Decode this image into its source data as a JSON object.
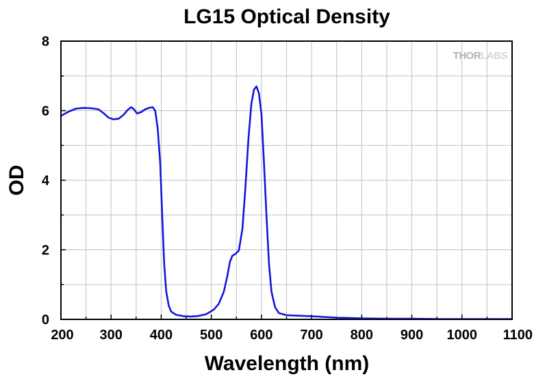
{
  "chart_data": {
    "type": "line",
    "title": "LG15 Optical Density",
    "xlabel": "Wavelength (nm)",
    "ylabel": "OD",
    "xlim": [
      200,
      1100
    ],
    "ylim": [
      0,
      8
    ],
    "xticks": [
      200,
      300,
      400,
      500,
      600,
      700,
      800,
      900,
      1000,
      1100
    ],
    "yticks": [
      0,
      2,
      4,
      6,
      8
    ],
    "x_minor_step": 50,
    "y_minor_step": 1,
    "grid": true,
    "line_color": "#1414dc",
    "series": [
      {
        "points": [
          [
            200,
            5.85
          ],
          [
            215,
            5.97
          ],
          [
            230,
            6.06
          ],
          [
            245,
            6.08
          ],
          [
            260,
            6.07
          ],
          [
            275,
            6.04
          ],
          [
            285,
            5.93
          ],
          [
            295,
            5.8
          ],
          [
            305,
            5.75
          ],
          [
            315,
            5.77
          ],
          [
            325,
            5.88
          ],
          [
            333,
            6.02
          ],
          [
            340,
            6.1
          ],
          [
            345,
            6.05
          ],
          [
            352,
            5.92
          ],
          [
            360,
            5.96
          ],
          [
            368,
            6.04
          ],
          [
            376,
            6.08
          ],
          [
            383,
            6.1
          ],
          [
            388,
            6.0
          ],
          [
            393,
            5.5
          ],
          [
            398,
            4.5
          ],
          [
            402,
            3.0
          ],
          [
            406,
            1.6
          ],
          [
            410,
            0.8
          ],
          [
            415,
            0.4
          ],
          [
            420,
            0.22
          ],
          [
            430,
            0.13
          ],
          [
            445,
            0.09
          ],
          [
            460,
            0.08
          ],
          [
            475,
            0.1
          ],
          [
            490,
            0.15
          ],
          [
            505,
            0.28
          ],
          [
            515,
            0.45
          ],
          [
            525,
            0.8
          ],
          [
            532,
            1.25
          ],
          [
            537,
            1.65
          ],
          [
            542,
            1.83
          ],
          [
            548,
            1.88
          ],
          [
            555,
            1.98
          ],
          [
            562,
            2.6
          ],
          [
            568,
            3.8
          ],
          [
            574,
            5.2
          ],
          [
            580,
            6.2
          ],
          [
            585,
            6.6
          ],
          [
            590,
            6.7
          ],
          [
            595,
            6.5
          ],
          [
            600,
            5.9
          ],
          [
            605,
            4.5
          ],
          [
            610,
            3.0
          ],
          [
            615,
            1.6
          ],
          [
            620,
            0.8
          ],
          [
            627,
            0.35
          ],
          [
            635,
            0.18
          ],
          [
            650,
            0.12
          ],
          [
            700,
            0.09
          ],
          [
            750,
            0.05
          ],
          [
            800,
            0.03
          ],
          [
            850,
            0.02
          ],
          [
            900,
            0.02
          ],
          [
            950,
            0.01
          ],
          [
            1000,
            0.01
          ],
          [
            1050,
            0.01
          ],
          [
            1100,
            0.01
          ]
        ]
      }
    ]
  },
  "logo": {
    "text_dark": "THOR",
    "text_light": "LABS"
  }
}
